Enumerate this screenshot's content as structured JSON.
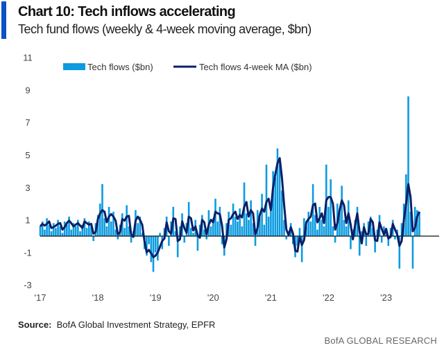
{
  "header": {
    "title": "Chart 10: Tech inflows accelerating",
    "subtitle": "Tech fund flows (weekly & 4-week moving average, $bn)"
  },
  "footer": {
    "source_label": "Source:",
    "source_text": "BofA Global Investment Strategy, EPFR",
    "brand": "BofA GLOBAL RESEARCH"
  },
  "colors": {
    "bars": "#0c9be0",
    "ma_line": "#0b1f66",
    "accent": "#0a52c6",
    "zero_line": "#111111"
  },
  "chart_data": {
    "type": "bar+line",
    "xlabel": "",
    "ylabel": "",
    "ylim": [
      -3,
      11
    ],
    "yticks": [
      "11",
      "9",
      "7",
      "5",
      "3",
      "1",
      "-1",
      "-3"
    ],
    "ytick_values": [
      11,
      9,
      7,
      5,
      3,
      1,
      -1,
      -3
    ],
    "xticks": [
      "'17",
      "'18",
      "'19",
      "'20",
      "'21",
      "'22",
      "'23"
    ],
    "x_range": [
      "2017-01",
      "2023-08"
    ],
    "grid": false,
    "legend": "top",
    "series": [
      {
        "name": "Tech flows ($bn)",
        "type": "bar",
        "values": [
          0.6,
          0.9,
          0.4,
          1.1,
          0.7,
          0.3,
          0.8,
          0.5,
          1.0,
          0.6,
          0.2,
          0.9,
          0.7,
          1.2,
          0.4,
          0.8,
          0.6,
          1.0,
          0.3,
          0.7,
          1.1,
          0.5,
          0.9,
          0.6,
          -0.3,
          0.8,
          1.3,
          2.0,
          3.2,
          1.1,
          0.6,
          1.8,
          0.9,
          1.5,
          0.4,
          -0.2,
          0.7,
          1.4,
          0.5,
          1.9,
          0.6,
          -0.4,
          0.3,
          1.6,
          0.8,
          1.2,
          0.2,
          -0.8,
          -1.2,
          -0.5,
          -1.6,
          -2.2,
          -1.0,
          -1.5,
          0.2,
          -0.8,
          0.5,
          1.2,
          -0.6,
          0.9,
          1.8,
          0.3,
          -1.3,
          0.6,
          1.4,
          -0.4,
          0.8,
          2.1,
          0.5,
          0.2,
          1.0,
          -0.9,
          0.7,
          1.3,
          0.4,
          -0.2,
          1.6,
          0.6,
          1.1,
          2.3,
          0.9,
          1.8,
          -0.5,
          -1.2,
          0.8,
          1.5,
          0.7,
          2.0,
          1.2,
          0.9,
          1.7,
          0.6,
          3.3,
          1.4,
          1.0,
          2.2,
          0.8,
          -0.6,
          1.6,
          1.1,
          2.6,
          0.7,
          4.4,
          1.2,
          2.0,
          4.0,
          3.6,
          5.4,
          4.8,
          2.8,
          1.0,
          -0.2,
          0.3,
          0.8,
          -0.5,
          -1.3,
          -0.6,
          0.5,
          -1.6,
          1.1,
          0.6,
          1.5,
          0.9,
          3.2,
          1.3,
          0.4,
          1.8,
          1.0,
          0.6,
          4.4,
          1.8,
          3.5,
          0.6,
          -0.4,
          2.0,
          1.5,
          3.1,
          1.0,
          0.6,
          2.2,
          -0.8,
          0.4,
          1.0,
          1.8,
          -1.2,
          0.3,
          0.8,
          -0.6,
          0.9,
          1.2,
          0.5,
          -1.0,
          0.4,
          1.3,
          -0.4,
          0.6,
          0.3,
          -0.6,
          0.5,
          1.0,
          -0.2,
          0.4,
          -2.0,
          0.8,
          2.0,
          3.8,
          8.6,
          1.5,
          -2.0,
          1.8,
          1.6,
          1.5
        ]
      },
      {
        "name": "Tech flows 4-week MA ($bn)",
        "type": "line",
        "values": [
          0.6,
          0.75,
          0.65,
          0.75,
          0.9,
          0.5,
          0.55,
          0.65,
          0.75,
          0.8,
          0.4,
          0.55,
          0.8,
          0.95,
          0.8,
          0.6,
          0.7,
          0.8,
          0.65,
          0.5,
          0.9,
          0.8,
          0.7,
          0.75,
          0.15,
          0.25,
          1.05,
          1.4,
          1.6,
          1.5,
          0.85,
          1.2,
          1.35,
          1.2,
          0.95,
          0.1,
          0.25,
          1.05,
          0.95,
          1.2,
          1.25,
          0.1,
          -0.05,
          0.95,
          1.2,
          1.0,
          0.7,
          -0.3,
          -1.0,
          -0.85,
          -1.05,
          -1.3,
          -1.2,
          -1.0,
          -0.65,
          -0.3,
          -0.15,
          0.85,
          0.3,
          0.15,
          1.1,
          1.05,
          -0.3,
          -0.2,
          0.9,
          0.5,
          0.2,
          1.2,
          1.1,
          0.35,
          0.6,
          0.05,
          -0.1,
          1.0,
          0.85,
          0.1,
          0.7,
          1.0,
          0.85,
          1.5,
          1.4,
          1.35,
          0.65,
          -0.7,
          -0.2,
          1.0,
          1.1,
          1.35,
          1.5,
          1.05,
          1.3,
          1.15,
          1.8,
          2.1,
          1.2,
          1.6,
          1.4,
          0.1,
          0.5,
          1.3,
          1.7,
          1.5,
          2.1,
          2.3,
          1.6,
          3.0,
          3.8,
          4.5,
          4.8,
          3.6,
          1.9,
          0.4,
          0.05,
          0.55,
          0.15,
          -0.9,
          -0.95,
          -0.05,
          -0.55,
          -0.25,
          0.85,
          1.05,
          1.2,
          1.9,
          2.0,
          0.85,
          1.1,
          1.4,
          0.8,
          2.2,
          2.4,
          2.4,
          2.0,
          0.4,
          0.8,
          1.6,
          2.2,
          1.9,
          0.8,
          1.4,
          0.7,
          -0.2,
          0.7,
          1.4,
          0.3,
          -0.45,
          0.55,
          0.1,
          0.15,
          1.05,
          0.85,
          -0.25,
          -0.3,
          0.85,
          0.45,
          0.1,
          0.45,
          -0.15,
          -0.05,
          0.75,
          0.4,
          0.1,
          -0.6,
          -0.3,
          1.0,
          2.0,
          3.2,
          2.4,
          0.3,
          0.5,
          1.2,
          1.5
        ]
      }
    ]
  }
}
